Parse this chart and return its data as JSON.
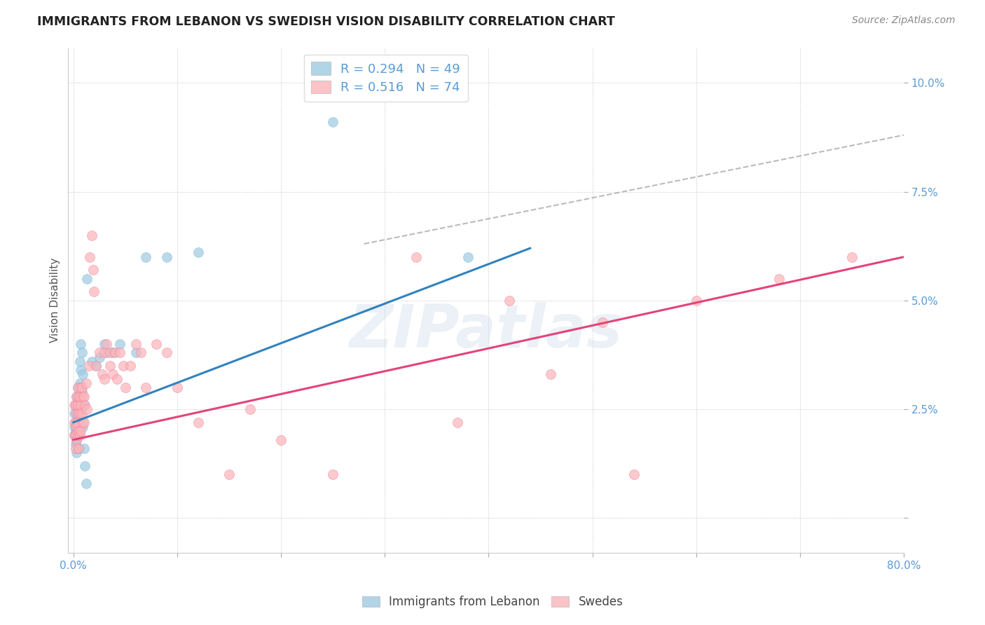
{
  "title": "IMMIGRANTS FROM LEBANON VS SWEDISH VISION DISABILITY CORRELATION CHART",
  "source": "Source: ZipAtlas.com",
  "ylabel": "Vision Disability",
  "watermark": "ZIPatlas",
  "xlim": [
    -0.005,
    0.8
  ],
  "ylim": [
    -0.008,
    0.108
  ],
  "yticks": [
    0.0,
    0.025,
    0.05,
    0.075,
    0.1
  ],
  "ytick_labels": [
    "",
    "2.5%",
    "5.0%",
    "7.5%",
    "10.0%"
  ],
  "xticks": [
    0.0,
    0.1,
    0.2,
    0.3,
    0.4,
    0.5,
    0.6,
    0.7,
    0.8
  ],
  "xtick_labels": [
    "0.0%",
    "",
    "",
    "",
    "",
    "",
    "",
    "",
    "80.0%"
  ],
  "legend_blue_r": "0.294",
  "legend_blue_n": "49",
  "legend_pink_r": "0.516",
  "legend_pink_n": "74",
  "blue_color": "#9ecae1",
  "pink_color": "#fbb4b9",
  "blue_line_color": "#3182bd",
  "pink_line_color": "#e3437a",
  "dashed_line_color": "#aaaaaa",
  "axis_color": "#5b9bd5",
  "background_color": "#ffffff",
  "blue_line_x": [
    0.0,
    0.44
  ],
  "blue_line_y": [
    0.022,
    0.062
  ],
  "pink_line_x": [
    0.0,
    0.8
  ],
  "pink_line_y": [
    0.018,
    0.06
  ],
  "dashed_line_x": [
    0.28,
    0.8
  ],
  "dashed_line_y": [
    0.063,
    0.088
  ],
  "blue_x": [
    0.001,
    0.001,
    0.001,
    0.002,
    0.002,
    0.002,
    0.002,
    0.003,
    0.003,
    0.003,
    0.003,
    0.003,
    0.004,
    0.004,
    0.004,
    0.004,
    0.004,
    0.005,
    0.005,
    0.005,
    0.005,
    0.006,
    0.006,
    0.006,
    0.006,
    0.007,
    0.007,
    0.008,
    0.008,
    0.009,
    0.009,
    0.01,
    0.01,
    0.011,
    0.012,
    0.013,
    0.018,
    0.022,
    0.025,
    0.03,
    0.032,
    0.038,
    0.045,
    0.06,
    0.07,
    0.09,
    0.12,
    0.25,
    0.38
  ],
  "blue_y": [
    0.024,
    0.021,
    0.019,
    0.026,
    0.022,
    0.02,
    0.017,
    0.028,
    0.024,
    0.021,
    0.018,
    0.015,
    0.03,
    0.027,
    0.023,
    0.02,
    0.016,
    0.027,
    0.024,
    0.02,
    0.016,
    0.036,
    0.031,
    0.027,
    0.022,
    0.04,
    0.034,
    0.038,
    0.029,
    0.033,
    0.021,
    0.026,
    0.016,
    0.012,
    0.008,
    0.055,
    0.036,
    0.035,
    0.037,
    0.04,
    0.038,
    0.038,
    0.04,
    0.038,
    0.06,
    0.06,
    0.061,
    0.091,
    0.06
  ],
  "pink_x": [
    0.001,
    0.001,
    0.001,
    0.002,
    0.002,
    0.002,
    0.002,
    0.003,
    0.003,
    0.003,
    0.003,
    0.004,
    0.004,
    0.004,
    0.004,
    0.005,
    0.005,
    0.005,
    0.005,
    0.006,
    0.006,
    0.006,
    0.007,
    0.007,
    0.007,
    0.008,
    0.008,
    0.009,
    0.009,
    0.01,
    0.01,
    0.011,
    0.012,
    0.013,
    0.015,
    0.016,
    0.018,
    0.019,
    0.02,
    0.022,
    0.025,
    0.028,
    0.03,
    0.03,
    0.032,
    0.035,
    0.035,
    0.038,
    0.04,
    0.042,
    0.045,
    0.048,
    0.05,
    0.055,
    0.06,
    0.065,
    0.07,
    0.08,
    0.09,
    0.1,
    0.12,
    0.15,
    0.17,
    0.2,
    0.25,
    0.33,
    0.37,
    0.42,
    0.46,
    0.51,
    0.54,
    0.6,
    0.68,
    0.75
  ],
  "pink_y": [
    0.026,
    0.022,
    0.019,
    0.026,
    0.022,
    0.019,
    0.016,
    0.028,
    0.024,
    0.021,
    0.018,
    0.03,
    0.026,
    0.022,
    0.019,
    0.028,
    0.024,
    0.02,
    0.016,
    0.028,
    0.024,
    0.019,
    0.03,
    0.026,
    0.02,
    0.03,
    0.024,
    0.028,
    0.022,
    0.028,
    0.022,
    0.026,
    0.031,
    0.025,
    0.035,
    0.06,
    0.065,
    0.057,
    0.052,
    0.035,
    0.038,
    0.033,
    0.038,
    0.032,
    0.04,
    0.038,
    0.035,
    0.033,
    0.038,
    0.032,
    0.038,
    0.035,
    0.03,
    0.035,
    0.04,
    0.038,
    0.03,
    0.04,
    0.038,
    0.03,
    0.022,
    0.01,
    0.025,
    0.018,
    0.01,
    0.06,
    0.022,
    0.05,
    0.033,
    0.045,
    0.01,
    0.05,
    0.055,
    0.06
  ]
}
